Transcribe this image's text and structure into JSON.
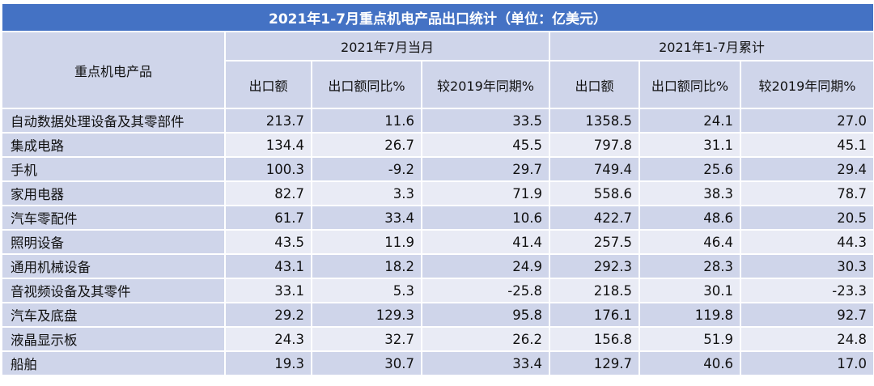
{
  "title": "2021年1-7月重点机电产品出口统计（单位：亿美元）",
  "header": {
    "product_col": "重点机电产品",
    "group_month": "2021年7月当月",
    "group_cumulative": "2021年1-7月累计",
    "sub": [
      "出口额",
      "出口额同比%",
      "较2019年同期%",
      "出口额",
      "出口额同比%",
      "较2019年同期%"
    ]
  },
  "rows": [
    {
      "name": "自动数据处理设备及其零部件",
      "values": [
        "213.7",
        "11.6",
        "33.5",
        "1358.5",
        "24.1",
        "27.0"
      ]
    },
    {
      "name": "集成电路",
      "values": [
        "134.4",
        "26.7",
        "45.5",
        "797.8",
        "31.1",
        "45.1"
      ]
    },
    {
      "name": "手机",
      "values": [
        "100.3",
        "-9.2",
        "29.7",
        "749.4",
        "25.6",
        "29.4"
      ]
    },
    {
      "name": "家用电器",
      "values": [
        "82.7",
        "3.3",
        "71.9",
        "558.6",
        "38.3",
        "78.7"
      ]
    },
    {
      "name": "汽车零配件",
      "values": [
        "61.7",
        "33.4",
        "10.6",
        "422.7",
        "48.6",
        "20.5"
      ]
    },
    {
      "name": "照明设备",
      "values": [
        "43.5",
        "11.9",
        "41.4",
        "257.5",
        "46.4",
        "44.3"
      ]
    },
    {
      "name": "通用机械设备",
      "values": [
        "43.1",
        "18.2",
        "24.9",
        "292.3",
        "28.3",
        "30.3"
      ]
    },
    {
      "name": "音视频设备及其零件",
      "values": [
        "33.1",
        "5.3",
        "-25.8",
        "218.5",
        "30.1",
        "-23.3"
      ]
    },
    {
      "name": "汽车及底盘",
      "values": [
        "29.2",
        "129.3",
        "95.8",
        "176.1",
        "119.8",
        "92.7"
      ]
    },
    {
      "name": "液晶显示板",
      "values": [
        "24.3",
        "32.7",
        "26.2",
        "156.8",
        "51.9",
        "24.8"
      ]
    },
    {
      "name": "船舶",
      "values": [
        "19.3",
        "30.7",
        "33.4",
        "129.7",
        "40.6",
        "17.0"
      ]
    }
  ],
  "colors": {
    "title_bg": "#4472c4",
    "header_bg": "#cfd5ea",
    "row_dark": "#cfd5ea",
    "row_light": "#e9ebf5"
  }
}
